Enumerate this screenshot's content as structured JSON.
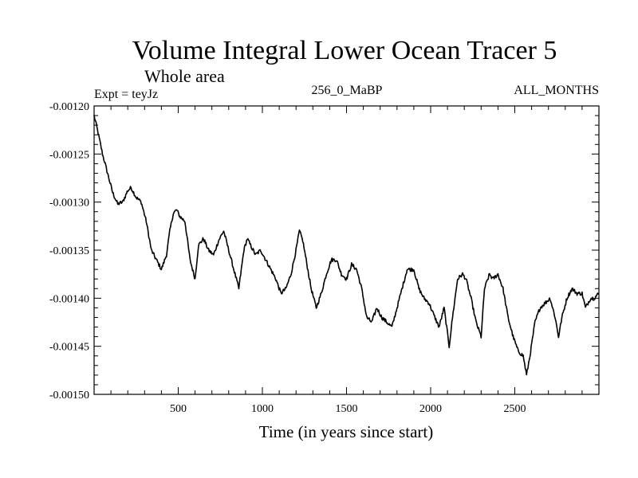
{
  "chart_data": {
    "type": "line",
    "title": "Volume Integral Lower Ocean Tracer 5",
    "subtitle": "Whole area",
    "experiment_label": "Expt = teyJz",
    "period_label": "256_0_MaBP",
    "months_label": "ALL_MONTHS",
    "xlabel": "Time (in years since start)",
    "ylabel": "",
    "xlim": [
      0,
      3000
    ],
    "ylim": [
      -0.0015,
      -0.0012
    ],
    "x_ticks": [
      500,
      1000,
      1500,
      2000,
      2500
    ],
    "x_tick_labels": [
      "500",
      "1000",
      "1500",
      "2000",
      "2500"
    ],
    "y_ticks": [
      -0.0012,
      -0.00125,
      -0.0013,
      -0.00135,
      -0.0014,
      -0.00145,
      -0.0015
    ],
    "y_tick_labels": [
      "-0.00120",
      "-0.00125",
      "-0.00130",
      "-0.00135",
      "-0.00140",
      "-0.00145",
      "-0.00150"
    ],
    "series": [
      {
        "name": "Lower Ocean Tracer 5",
        "x": [
          0,
          20,
          50,
          80,
          110,
          140,
          170,
          200,
          220,
          250,
          280,
          310,
          340,
          370,
          400,
          430,
          450,
          470,
          490,
          510,
          540,
          570,
          600,
          620,
          650,
          680,
          710,
          740,
          770,
          800,
          830,
          860,
          890,
          910,
          930,
          960,
          990,
          1020,
          1050,
          1080,
          1110,
          1140,
          1170,
          1200,
          1220,
          1240,
          1260,
          1290,
          1320,
          1350,
          1380,
          1410,
          1440,
          1470,
          1500,
          1530,
          1560,
          1590,
          1620,
          1650,
          1680,
          1710,
          1740,
          1770,
          1800,
          1830,
          1860,
          1880,
          1900,
          1930,
          1960,
          1990,
          2020,
          2050,
          2080,
          2110,
          2130,
          2160,
          2190,
          2210,
          2240,
          2270,
          2300,
          2320,
          2350,
          2370,
          2400,
          2430,
          2460,
          2490,
          2520,
          2550,
          2570,
          2590,
          2620,
          2650,
          2680,
          2710,
          2740,
          2760,
          2780,
          2810,
          2840,
          2870,
          2900,
          2920,
          2950,
          2970,
          3000
        ],
        "values": [
          -0.00121,
          -0.001225,
          -0.00125,
          -0.00127,
          -0.00129,
          -0.001302,
          -0.0013,
          -0.001288,
          -0.001285,
          -0.001295,
          -0.0013,
          -0.00132,
          -0.00135,
          -0.00136,
          -0.00137,
          -0.001355,
          -0.00133,
          -0.001312,
          -0.001308,
          -0.001315,
          -0.00132,
          -0.00136,
          -0.00138,
          -0.001345,
          -0.001338,
          -0.00135,
          -0.001355,
          -0.00134,
          -0.00133,
          -0.00135,
          -0.00137,
          -0.00139,
          -0.00135,
          -0.001338,
          -0.001345,
          -0.001355,
          -0.00135,
          -0.00136,
          -0.00137,
          -0.00138,
          -0.001395,
          -0.00139,
          -0.001375,
          -0.00135,
          -0.00133,
          -0.00134,
          -0.00136,
          -0.00139,
          -0.00141,
          -0.001395,
          -0.001375,
          -0.00136,
          -0.00136,
          -0.001375,
          -0.00138,
          -0.001365,
          -0.00137,
          -0.00139,
          -0.00142,
          -0.001425,
          -0.00141,
          -0.00142,
          -0.001425,
          -0.00143,
          -0.00141,
          -0.00139,
          -0.00137,
          -0.00137,
          -0.00137,
          -0.00139,
          -0.0014,
          -0.001405,
          -0.001418,
          -0.00143,
          -0.00141,
          -0.00145,
          -0.00142,
          -0.00138,
          -0.001375,
          -0.00138,
          -0.0014,
          -0.001425,
          -0.00144,
          -0.00139,
          -0.001375,
          -0.00138,
          -0.001375,
          -0.00139,
          -0.00142,
          -0.00144,
          -0.001455,
          -0.00146,
          -0.00148,
          -0.00146,
          -0.001425,
          -0.00141,
          -0.001405,
          -0.0014,
          -0.00142,
          -0.00144,
          -0.00142,
          -0.0014,
          -0.00139,
          -0.001395,
          -0.001395,
          -0.00141,
          -0.0014,
          -0.0014,
          -0.001395
        ]
      }
    ]
  }
}
